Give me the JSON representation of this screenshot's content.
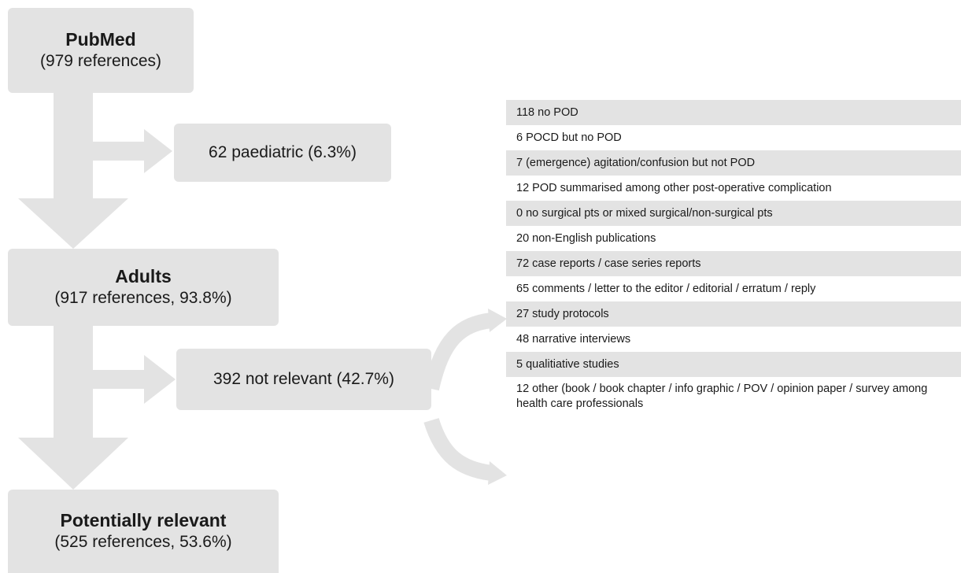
{
  "colors": {
    "box": "#e3e3e3",
    "arrow": "#e3e3e3",
    "text": "#1a1a1a"
  },
  "nodes": {
    "pubmed": {
      "title": "PubMed",
      "sub": "(979 references)"
    },
    "paediatric": {
      "label": "62 paediatric (6.3%)"
    },
    "adults": {
      "title": "Adults",
      "sub": "(917 references, 93.8%)"
    },
    "not_relevant": {
      "label": "392 not relevant (42.7%)"
    },
    "potentially_relevant": {
      "title": "Potentially relevant",
      "sub": "(525 references, 53.6%)"
    }
  },
  "exclusions": [
    "118 no POD",
    "6 POCD but no POD",
    "7 (emergence) agitation/confusion but not POD",
    "12 POD summarised among other post-operative complication",
    "0 no surgical pts or mixed surgical/non-surgical pts",
    "20 non-English publications",
    "72 case reports / case series reports",
    "65 comments / letter to the editor / editorial / erratum / reply",
    "27 study protocols",
    "48 narrative interviews",
    "5 qualitiative studies",
    "12 other (book / book chapter / info graphic / POV / opinion paper / survey among health care professionals"
  ]
}
